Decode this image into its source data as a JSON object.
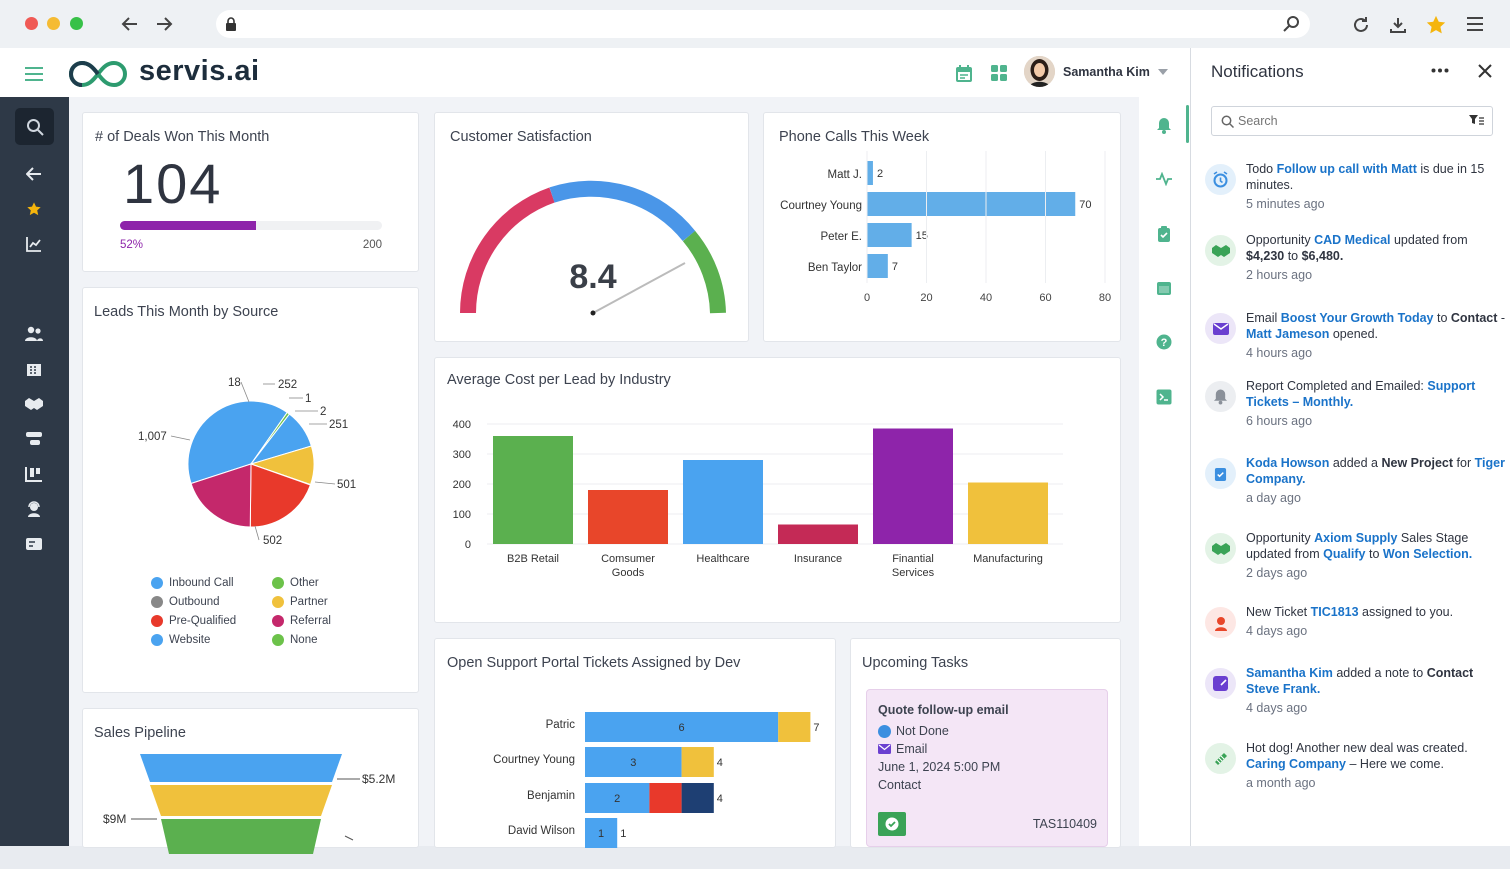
{
  "browser": {
    "url": ""
  },
  "app": {
    "logo_text": "servis.ai",
    "user_name": "Samantha Kim"
  },
  "deals": {
    "title": "# of Deals Won This Month",
    "value": "104",
    "progress": 0.52,
    "pct_label": "52%",
    "target": "200"
  },
  "satisfaction": {
    "title": "Customer Satisfaction",
    "value": "8.4",
    "gauge_fraction": 0.84
  },
  "leads": {
    "title": "Leads This Month by Source"
  },
  "phone": {
    "title": "Phone Calls This Week"
  },
  "cost": {
    "title": "Average Cost per Lead by Industry"
  },
  "tickets": {
    "title": "Open Support Portal Tickets Assigned by Dev"
  },
  "pipeline": {
    "title": "Sales Pipeline"
  },
  "tasks": {
    "title": "Upcoming Tasks",
    "task_title": "Quote follow-up email",
    "status": "Not Done",
    "type": "Email",
    "date": "June 1, 2024 5:00 PM",
    "related": "Contact",
    "id": "TAS110409"
  },
  "chart_data": [
    {
      "type": "pie",
      "title": "Leads This Month by Source",
      "slices": [
        {
          "label": "Website",
          "value": 1007,
          "color": "#4aa3f0"
        },
        {
          "label": "Other",
          "value": 18,
          "color": "#6cc24a"
        },
        {
          "label": "Pre-Qualified",
          "value": 252,
          "color": "#4aa3f0"
        },
        {
          "label": "Partner",
          "value": 251,
          "color": "#f0c13c"
        },
        {
          "label": "Outbound",
          "value": 1,
          "color": "#888888"
        },
        {
          "label": "None",
          "value": 2,
          "color": "#6cc24a"
        },
        {
          "label": "Pre-Qualified",
          "value": 501,
          "color": "#e8392b"
        },
        {
          "label": "Referral",
          "value": 502,
          "color": "#c4286b"
        }
      ],
      "labels": [
        "1,007",
        "18",
        "252",
        "1",
        "2",
        "251",
        "501",
        "502"
      ],
      "legend": [
        {
          "label": "Inbound Call",
          "color": "#4aa3f0"
        },
        {
          "label": "Other",
          "color": "#6cc24a"
        },
        {
          "label": "Outbound",
          "color": "#888888"
        },
        {
          "label": "Partner",
          "color": "#f0c13c"
        },
        {
          "label": "Pre-Qualified",
          "color": "#e8392b"
        },
        {
          "label": "Referral",
          "color": "#c4286b"
        },
        {
          "label": "Website",
          "color": "#4aa3f0"
        },
        {
          "label": "None",
          "color": "#6cc24a"
        }
      ]
    },
    {
      "type": "bar",
      "orientation": "horizontal",
      "title": "Phone Calls This Week",
      "categories": [
        "Matt J.",
        "Courtney Young",
        "Peter E.",
        "Ben Taylor"
      ],
      "values": [
        2,
        70,
        15,
        7
      ],
      "xlim": [
        0,
        80
      ],
      "xticks": [
        "0",
        "20",
        "40",
        "60",
        "80"
      ],
      "color": "#62aee8"
    },
    {
      "type": "bar",
      "title": "Average Cost per Lead by Industry",
      "categories": [
        "B2B Retail",
        "Comsumer Goods",
        "Healthcare",
        "Insurance",
        "Finantial Services",
        "Manufacturing"
      ],
      "values": [
        360,
        180,
        280,
        65,
        385,
        205
      ],
      "colors": [
        "#5bb04f",
        "#e8462a",
        "#4aa3f0",
        "#c42a56",
        "#8e24aa",
        "#f0c13c"
      ],
      "ylim": [
        0,
        400
      ],
      "yticks": [
        "400",
        "300",
        "200",
        "100",
        "0"
      ]
    },
    {
      "type": "bar",
      "orientation": "horizontal",
      "stacked": true,
      "title": "Open Support Portal Tickets Assigned by Dev",
      "categories": [
        "Patric",
        "Courtney Young",
        "Benjamin",
        "David Wilson"
      ],
      "segments": [
        [
          6,
          1
        ],
        [
          3,
          1
        ],
        [
          2,
          1,
          1
        ],
        [
          1
        ]
      ],
      "segment_labels": [
        "6",
        "3",
        "2",
        "1"
      ],
      "totals": [
        "7",
        "4",
        "4",
        "1"
      ],
      "segment_colors": [
        [
          "#4aa3f0",
          "#f0c13c"
        ],
        [
          "#4aa3f0",
          "#f0c13c"
        ],
        [
          "#4aa3f0",
          "#e8392b",
          "#1e3f73"
        ],
        [
          "#4aa3f0"
        ]
      ]
    },
    {
      "type": "funnel",
      "title": "Sales Pipeline",
      "labels": [
        "$5.2M",
        "$9M"
      ],
      "colors": [
        "#4aa3f0",
        "#f0c13c",
        "#5bb04f"
      ]
    }
  ],
  "notifications": {
    "title": "Notifications",
    "search_placeholder": "Search",
    "items": [
      {
        "icon": "alarm-icon",
        "icon_bg": "#e3f0fb",
        "icon_color": "#3b8fe0",
        "parts": [
          [
            "Todo ",
            ""
          ],
          [
            "Follow up call with Matt",
            "lk"
          ],
          [
            "  is due in 15 minutes.",
            ""
          ]
        ],
        "time": "5 minutes ago"
      },
      {
        "icon": "handshake-icon",
        "icon_bg": "#e3f3e6",
        "icon_color": "#3aa357",
        "parts": [
          [
            "Opportunity ",
            ""
          ],
          [
            "CAD Medical",
            "lk"
          ],
          [
            " updated from ",
            ""
          ],
          [
            "$4,230",
            "b"
          ],
          [
            " to ",
            ""
          ],
          [
            "$6,480.",
            "b"
          ]
        ],
        "time": "2 hours ago"
      },
      {
        "icon": "mail-icon",
        "icon_bg": "#ece6f8",
        "icon_color": "#6a3fd0",
        "parts": [
          [
            "Email ",
            ""
          ],
          [
            "Boost Your Growth Today",
            "lk"
          ],
          [
            " to ",
            ""
          ],
          [
            "Contact",
            "b"
          ],
          [
            " - ",
            ""
          ],
          [
            "Matt Jameson",
            "lk"
          ],
          [
            " opened.",
            ""
          ]
        ],
        "time": "4 hours ago"
      },
      {
        "icon": "bell-icon",
        "icon_bg": "#eceef1",
        "icon_color": "#8a9099",
        "parts": [
          [
            "Report Completed and Emailed: ",
            ""
          ],
          [
            "Support Tickets – Monthly.",
            "lk"
          ]
        ],
        "time": "6 hours ago"
      },
      {
        "icon": "clipboard-icon",
        "icon_bg": "#e3f0fb",
        "icon_color": "#3b8fe0",
        "parts": [
          [
            "Koda Howson",
            "lk"
          ],
          [
            " added a ",
            ""
          ],
          [
            "New Project",
            "b"
          ],
          [
            " for ",
            ""
          ],
          [
            "Tiger Company.",
            "lk"
          ]
        ],
        "time": "a day ago"
      },
      {
        "icon": "handshake-icon",
        "icon_bg": "#e3f3e6",
        "icon_color": "#3aa357",
        "parts": [
          [
            "Opportunity ",
            ""
          ],
          [
            "Axiom Supply",
            "lk"
          ],
          [
            " Sales Stage updated from ",
            ""
          ],
          [
            "Qualify",
            "lk"
          ],
          [
            " to ",
            ""
          ],
          [
            "Won Selection.",
            "lk"
          ]
        ],
        "time": "2 days ago"
      },
      {
        "icon": "support-agent-icon",
        "icon_bg": "#fde7e4",
        "icon_color": "#e8462a",
        "parts": [
          [
            "New Ticket ",
            ""
          ],
          [
            "TIC1813",
            "lk"
          ],
          [
            " assigned to you.",
            ""
          ]
        ],
        "time": "4 days ago"
      },
      {
        "icon": "note-icon",
        "icon_bg": "#ece6f8",
        "icon_color": "#6a3fd0",
        "parts": [
          [
            "Samantha Kim",
            "lk"
          ],
          [
            " added a note to ",
            ""
          ],
          [
            "Contact",
            "b"
          ],
          [
            " ",
            ""
          ],
          [
            "Steve Frank.",
            "lk"
          ]
        ],
        "time": "4 days ago"
      },
      {
        "icon": "deal-icon",
        "icon_bg": "#e3f3e6",
        "icon_color": "#3aa357",
        "parts": [
          [
            "Hot dog! Another new deal was created. ",
            ""
          ],
          [
            "Caring Company",
            "lk"
          ],
          [
            " – Here we come.",
            ""
          ]
        ],
        "time": "a month ago"
      }
    ]
  }
}
